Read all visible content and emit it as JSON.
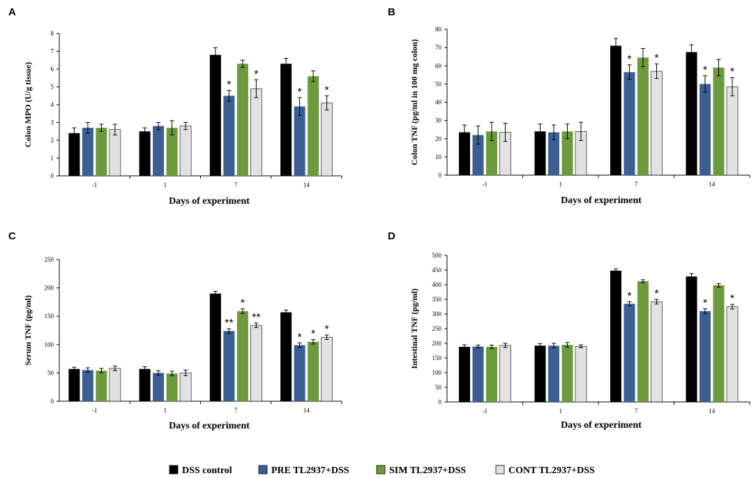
{
  "chart_data": [
    {
      "panel": "A",
      "type": "bar",
      "ylabel": "Colon MPO (U/g tissue)",
      "xlabel": "Days of experiment",
      "categories": [
        "-1",
        "1",
        "7",
        "14"
      ],
      "ylim": [
        0,
        8
      ],
      "yticks": [
        0,
        1,
        2,
        3,
        4,
        5,
        6,
        7,
        8
      ],
      "series": [
        {
          "name": "DSS control",
          "values": [
            2.4,
            2.5,
            6.8,
            6.3
          ],
          "errors": [
            0.3,
            0.2,
            0.4,
            0.3
          ],
          "stars": [
            "",
            "",
            "",
            ""
          ]
        },
        {
          "name": "PRE TL2937+DSS",
          "values": [
            2.7,
            2.8,
            4.5,
            3.9
          ],
          "errors": [
            0.3,
            0.2,
            0.3,
            0.5
          ],
          "stars": [
            "",
            "",
            "*",
            "*"
          ]
        },
        {
          "name": "SIM TL2937+DSS",
          "values": [
            2.7,
            2.7,
            6.3,
            5.6
          ],
          "errors": [
            0.2,
            0.4,
            0.2,
            0.3
          ],
          "stars": [
            "",
            "",
            "",
            ""
          ]
        },
        {
          "name": "CONT TL2937+DSS",
          "values": [
            2.6,
            2.8,
            4.9,
            4.1
          ],
          "errors": [
            0.3,
            0.2,
            0.5,
            0.4
          ],
          "stars": [
            "",
            "",
            "*",
            "*"
          ]
        }
      ]
    },
    {
      "panel": "B",
      "type": "bar",
      "ylabel": "Colon TNF (pg/ml in 100 mg colon)",
      "xlabel": "Days of experiment",
      "categories": [
        "-1",
        "1",
        "7",
        "14"
      ],
      "ylim": [
        0,
        80
      ],
      "yticks": [
        0,
        10,
        20,
        30,
        40,
        50,
        60,
        70,
        80
      ],
      "series": [
        {
          "name": "DSS control",
          "values": [
            23.5,
            24,
            71,
            67.5
          ],
          "errors": [
            4,
            4,
            4,
            4
          ],
          "stars": [
            "",
            "",
            "",
            ""
          ]
        },
        {
          "name": "PRE TL2937+DSS",
          "values": [
            22,
            23.5,
            56.5,
            50
          ],
          "errors": [
            5,
            4,
            4,
            4.5
          ],
          "stars": [
            "",
            "",
            "*",
            "*"
          ]
        },
        {
          "name": "SIM TL2937+DSS",
          "values": [
            24,
            24,
            64.5,
            59
          ],
          "errors": [
            5,
            4,
            5,
            4.5
          ],
          "stars": [
            "",
            "",
            "",
            ""
          ]
        },
        {
          "name": "CONT TL2937+DSS",
          "values": [
            23.5,
            24,
            57,
            48.5
          ],
          "errors": [
            5,
            5,
            4,
            5
          ],
          "stars": [
            "",
            "",
            "*",
            "*"
          ]
        }
      ]
    },
    {
      "panel": "C",
      "type": "bar",
      "ylabel": "Serum TNF (pg/ml)",
      "xlabel": "Days of experiment",
      "categories": [
        "-1",
        "1",
        "7",
        "14"
      ],
      "ylim": [
        0,
        250
      ],
      "yticks": [
        0,
        50,
        100,
        150,
        200,
        250
      ],
      "series": [
        {
          "name": "DSS control",
          "values": [
            57,
            57,
            190,
            157
          ],
          "errors": [
            3,
            4,
            4,
            4
          ],
          "stars": [
            "",
            "",
            "",
            ""
          ]
        },
        {
          "name": "PRE TL2937+DSS",
          "values": [
            55,
            50,
            124,
            99
          ],
          "errors": [
            4,
            4,
            4,
            4
          ],
          "stars": [
            "",
            "",
            "**",
            "*"
          ]
        },
        {
          "name": "SIM TL2937+DSS",
          "values": [
            54,
            49,
            159,
            105
          ],
          "errors": [
            4,
            4,
            4,
            4
          ],
          "stars": [
            "",
            "",
            "*",
            "*"
          ]
        },
        {
          "name": "CONT TL2937+DSS",
          "values": [
            58,
            50,
            134,
            113
          ],
          "errors": [
            4,
            5,
            4,
            4
          ],
          "stars": [
            "",
            "",
            "**",
            "*"
          ]
        }
      ]
    },
    {
      "panel": "D",
      "type": "bar",
      "ylabel": "Intestinal TNF (pg/ml)",
      "xlabel": "Days of experiment",
      "categories": [
        "-1",
        "1",
        "7",
        "14"
      ],
      "ylim": [
        0,
        500
      ],
      "yticks": [
        0,
        50,
        100,
        150,
        200,
        250,
        300,
        350,
        400,
        450,
        500
      ],
      "series": [
        {
          "name": "DSS control",
          "values": [
            188,
            192,
            448,
            428
          ],
          "errors": [
            7,
            7,
            6,
            10
          ],
          "stars": [
            "",
            "",
            "",
            ""
          ]
        },
        {
          "name": "PRE TL2937+DSS",
          "values": [
            189,
            192,
            335,
            310
          ],
          "errors": [
            5,
            8,
            7,
            8
          ],
          "stars": [
            "",
            "",
            "*",
            "*"
          ]
        },
        {
          "name": "SIM TL2937+DSS",
          "values": [
            188,
            195,
            412,
            398
          ],
          "errors": [
            6,
            8,
            5,
            6
          ],
          "stars": [
            "",
            "",
            "",
            ""
          ]
        },
        {
          "name": "CONT TL2937+DSS",
          "values": [
            193,
            190,
            342,
            325
          ],
          "errors": [
            7,
            5,
            8,
            8
          ],
          "stars": [
            "",
            "",
            "*",
            "*"
          ]
        }
      ]
    }
  ],
  "series_colors": [
    "#000000",
    "#3c5f91",
    "#6d9a3c",
    "#e2e2e2"
  ],
  "legend": [
    {
      "label": "DSS control",
      "color": "#000000"
    },
    {
      "label": "PRE TL2937+DSS",
      "color": "#3c5f91"
    },
    {
      "label": "SIM TL2937+DSS",
      "color": "#6d9a3c"
    },
    {
      "label": "CONT TL2937+DSS",
      "color": "#e2e2e2"
    }
  ]
}
